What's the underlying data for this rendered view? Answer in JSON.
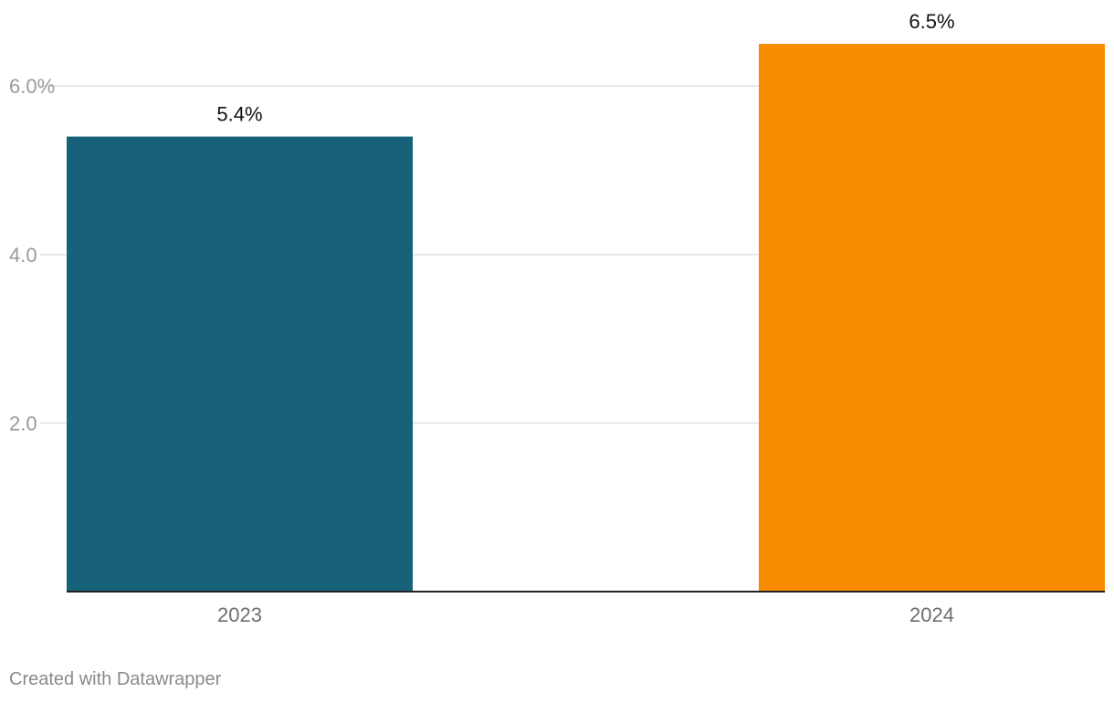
{
  "chart_data": {
    "type": "bar",
    "categories": [
      "2023",
      "2024"
    ],
    "values": [
      5.4,
      6.5
    ],
    "value_labels": [
      "5.4%",
      "6.5%"
    ],
    "colors": [
      "#17627a",
      "#f98b00"
    ],
    "ylim": [
      0,
      6.5
    ],
    "yticks": [
      2.0,
      4.0,
      6.0
    ],
    "ytick_labels": [
      "2.0",
      "4.0",
      "6.0%"
    ],
    "grid": true,
    "title": "",
    "xlabel": "",
    "ylabel": ""
  },
  "footer": {
    "credit": "Created with Datawrapper"
  }
}
